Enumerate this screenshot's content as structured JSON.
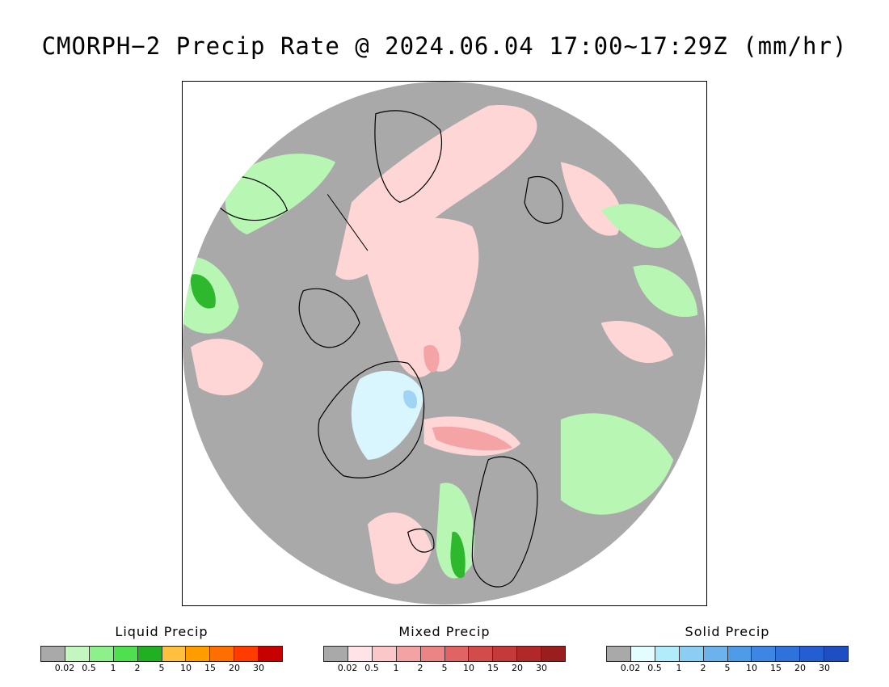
{
  "title": "CMORPH−2 Precip Rate @ 2024.06.04 17:00~17:29Z (mm/hr)",
  "map": {
    "projection": "north-polar-stereographic",
    "colors": {
      "no_precip": "#a9a9a9",
      "mixed_light": "#ffd6d6",
      "mixed_mid": "#f4a4a4",
      "liquid_light": "#b7f7b3",
      "liquid_mid": "#7de67c",
      "liquid_dark": "#2eb82e",
      "solid_light": "#d9f6ff",
      "solid_mid": "#9fd4f5",
      "coastline": "#000000"
    }
  },
  "legends": [
    {
      "title": "Liquid Precip",
      "colors": [
        "#a9a9a9",
        "#c4f7c0",
        "#8ef08a",
        "#4fe04f",
        "#21b021",
        "#ffbf3f",
        "#ff9d00",
        "#ff6e00",
        "#ff3b00",
        "#c70000"
      ],
      "ticks": [
        "0.02",
        "0.5",
        "1",
        "2",
        "5",
        "10",
        "15",
        "20",
        "30"
      ]
    },
    {
      "title": "Mixed Precip",
      "colors": [
        "#a9a9a9",
        "#ffe3e6",
        "#fbc7c9",
        "#f4a3a5",
        "#eb8484",
        "#e06464",
        "#d24c4c",
        "#c43a3a",
        "#b02828",
        "#9a1e1e"
      ],
      "ticks": [
        "0.02",
        "0.5",
        "1",
        "2",
        "5",
        "10",
        "15",
        "20",
        "30"
      ]
    },
    {
      "title": "Solid Precip",
      "colors": [
        "#a9a9a9",
        "#e3fdff",
        "#b2ecfb",
        "#8bcdf3",
        "#6cb3ee",
        "#4e9ce8",
        "#3d86e3",
        "#2f72dc",
        "#245ed2",
        "#1e4ec2"
      ],
      "ticks": [
        "0.02",
        "0.5",
        "1",
        "2",
        "5",
        "10",
        "15",
        "20",
        "30"
      ]
    }
  ]
}
